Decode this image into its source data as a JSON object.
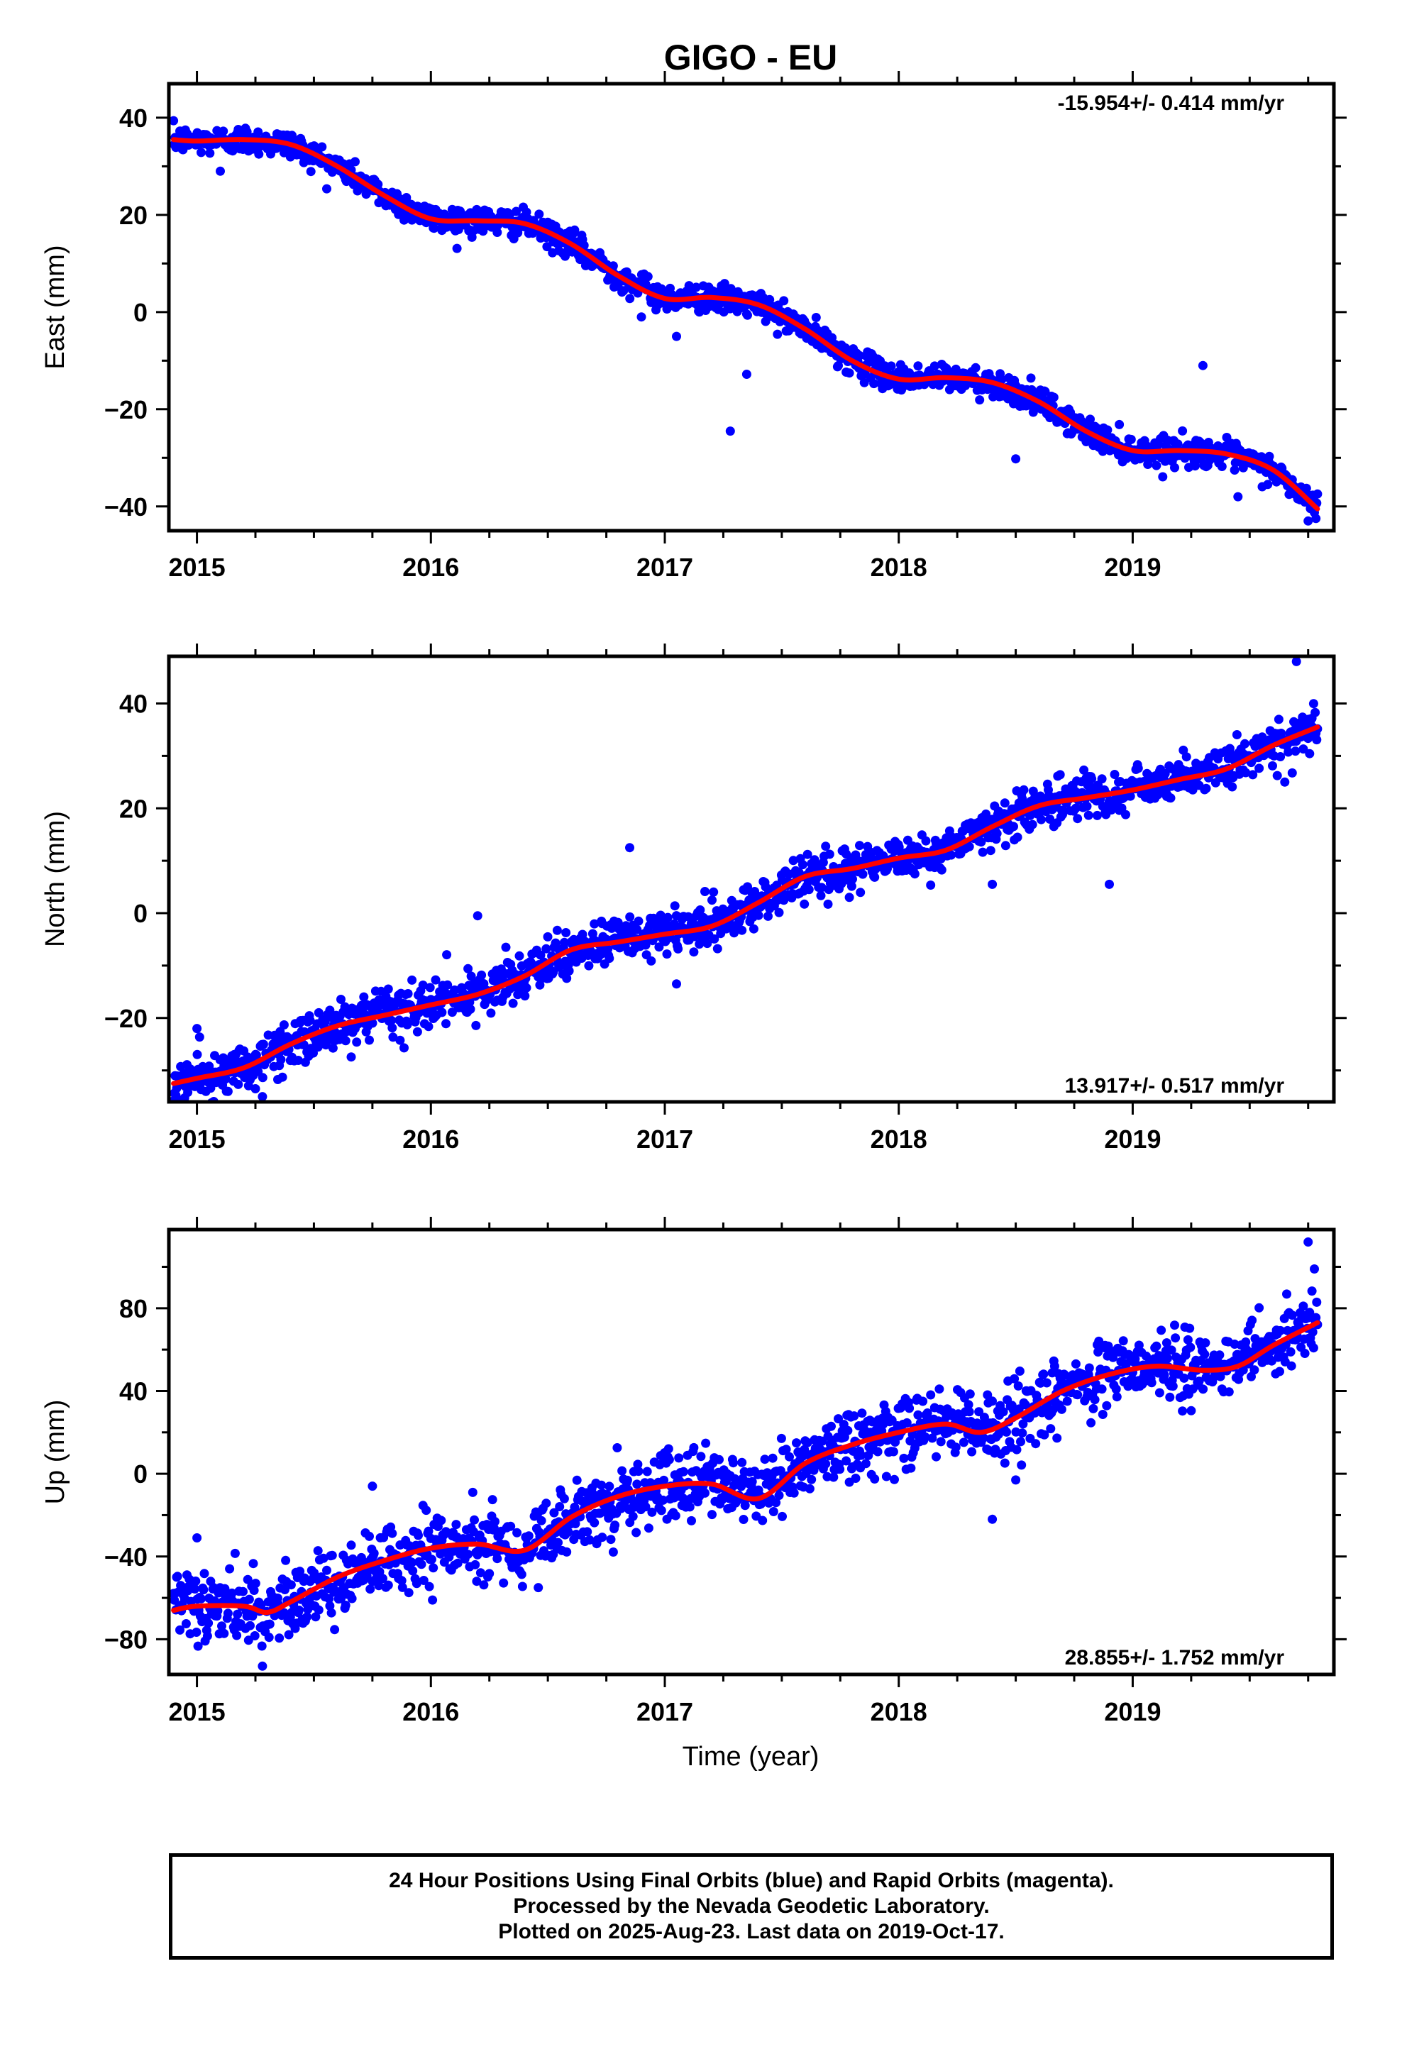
{
  "title": "GIGO - EU",
  "colors": {
    "points": "#0000ff",
    "model": "#ff0000"
  },
  "xlabel": "Time (year)",
  "footer": {
    "line1": "24 Hour Positions Using Final Orbits (blue) and Rapid Orbits (magenta).",
    "line2": "Processed by the Nevada Geodetic Laboratory.",
    "line3": "Plotted on 2025-Aug-23. Last data on 2019-Oct-17."
  },
  "chart_data": [
    {
      "type": "scatter",
      "name": "east",
      "title": "GIGO - EU",
      "xlabel": "",
      "ylabel": "East (mm)",
      "rate_label": "-15.954+/- 0.414 mm/yr",
      "xlim": [
        2014.88,
        2019.86
      ],
      "ylim": [
        -45,
        47
      ],
      "xticks": [
        2015,
        2016,
        2017,
        2018,
        2019
      ],
      "yticks": [
        -40,
        -20,
        0,
        20,
        40
      ],
      "x_range": [
        2014.9,
        2019.79
      ],
      "trend_x": [
        2014.9,
        2015.0,
        2015.2,
        2015.4,
        2015.6,
        2015.8,
        2016.0,
        2016.2,
        2016.4,
        2016.6,
        2016.8,
        2017.0,
        2017.2,
        2017.4,
        2017.6,
        2017.8,
        2018.0,
        2018.2,
        2018.4,
        2018.6,
        2018.8,
        2019.0,
        2019.2,
        2019.4,
        2019.6,
        2019.79
      ],
      "trend_y": [
        35.5,
        35.2,
        35.5,
        34.5,
        30.0,
        24.0,
        19.2,
        18.8,
        18.2,
        14.0,
        7.5,
        2.8,
        3.0,
        1.5,
        -3.5,
        -10.0,
        -13.8,
        -13.5,
        -14.5,
        -18.5,
        -24.5,
        -28.5,
        -28.5,
        -29.2,
        -32.5,
        -40.5
      ],
      "noise_sd": 1.4,
      "outliers": [
        [
          2015.1,
          29
        ],
        [
          2016.9,
          -1
        ],
        [
          2017.05,
          -5
        ],
        [
          2017.35,
          -12.8
        ],
        [
          2017.28,
          -24.5
        ],
        [
          2018.5,
          -30.2
        ],
        [
          2019.3,
          -11
        ],
        [
          2019.45,
          -38
        ],
        [
          2019.75,
          -43
        ]
      ]
    },
    {
      "type": "scatter",
      "name": "north",
      "xlabel": "",
      "ylabel": "North (mm)",
      "rate_label": "13.917+/- 0.517 mm/yr",
      "xlim": [
        2014.88,
        2019.86
      ],
      "ylim": [
        -36,
        49
      ],
      "xticks": [
        2015,
        2016,
        2017,
        2018,
        2019
      ],
      "yticks": [
        -20,
        0,
        20,
        40
      ],
      "x_range": [
        2014.9,
        2019.79
      ],
      "trend_x": [
        2014.9,
        2015.0,
        2015.2,
        2015.4,
        2015.6,
        2015.8,
        2016.0,
        2016.2,
        2016.4,
        2016.6,
        2016.8,
        2017.0,
        2017.2,
        2017.4,
        2017.6,
        2017.8,
        2018.0,
        2018.2,
        2018.4,
        2018.6,
        2018.8,
        2019.0,
        2019.2,
        2019.4,
        2019.6,
        2019.79
      ],
      "trend_y": [
        -32.5,
        -31.5,
        -29.5,
        -25.0,
        -21.5,
        -19.5,
        -17.5,
        -15.5,
        -12.0,
        -7.0,
        -5.5,
        -4.0,
        -2.5,
        2.0,
        7.0,
        8.5,
        10.5,
        12.0,
        16.5,
        20.5,
        22.0,
        23.5,
        25.5,
        27.5,
        32.0,
        35.5
      ],
      "noise_sd": 2.2,
      "outliers": [
        [
          2015.0,
          -22
        ],
        [
          2015.25,
          -33.5
        ],
        [
          2015.28,
          -35
        ],
        [
          2016.2,
          -0.5
        ],
        [
          2016.85,
          12.5
        ],
        [
          2017.05,
          -13.5
        ],
        [
          2018.4,
          5.5
        ],
        [
          2018.9,
          5.5
        ],
        [
          2019.7,
          48
        ],
        [
          2019.65,
          25
        ]
      ]
    },
    {
      "type": "scatter",
      "name": "up",
      "xlabel": "Time (year)",
      "ylabel": "Up (mm)",
      "rate_label": "28.855+/- 1.752 mm/yr",
      "xlim": [
        2014.88,
        2019.86
      ],
      "ylim": [
        -97,
        118
      ],
      "xticks": [
        2015,
        2016,
        2017,
        2018,
        2019
      ],
      "yticks": [
        -80,
        -40,
        0,
        40,
        80
      ],
      "x_range": [
        2014.9,
        2019.79
      ],
      "trend_x": [
        2014.9,
        2015.0,
        2015.2,
        2015.3,
        2015.4,
        2015.6,
        2015.8,
        2016.0,
        2016.2,
        2016.4,
        2016.6,
        2016.8,
        2017.0,
        2017.2,
        2017.4,
        2017.6,
        2017.8,
        2018.0,
        2018.2,
        2018.35,
        2018.5,
        2018.7,
        2018.9,
        2019.1,
        2019.3,
        2019.45,
        2019.6,
        2019.79
      ],
      "trend_y": [
        -66,
        -64,
        -64,
        -67,
        -62,
        -50,
        -42,
        -36,
        -34,
        -37,
        -21,
        -11,
        -6,
        -5,
        -12,
        5,
        14,
        20,
        24,
        20,
        27,
        40,
        48,
        52,
        50,
        52,
        62,
        73
      ],
      "noise_sd": 8.5,
      "outliers": [
        [
          2015.0,
          -31
        ],
        [
          2015.28,
          -93
        ],
        [
          2015.75,
          -6
        ],
        [
          2018.4,
          -22
        ],
        [
          2018.5,
          -3
        ],
        [
          2019.75,
          112
        ]
      ]
    }
  ]
}
